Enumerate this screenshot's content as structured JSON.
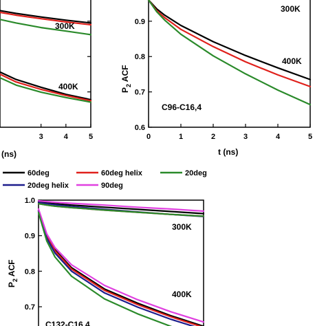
{
  "chart_data": [
    {
      "type": "line",
      "panel": "top-left",
      "xlabel": "(ns)",
      "x_ticks": [
        "3",
        "4",
        "5"
      ],
      "annotations": [
        "300K",
        "400K"
      ],
      "series": [
        {
          "name": "60deg",
          "x": [
            1.2,
            2,
            3,
            4,
            5
          ],
          "y": [
            0.93,
            0.922,
            0.912,
            0.903,
            0.895
          ]
        },
        {
          "name": "60deg helix",
          "x": [
            1.2,
            2,
            3,
            4,
            5
          ],
          "y": [
            0.925,
            0.917,
            0.907,
            0.898,
            0.89
          ]
        },
        {
          "name": "20deg",
          "x": [
            1.2,
            2,
            3,
            4,
            5
          ],
          "y": [
            0.905,
            0.895,
            0.882,
            0.872,
            0.862
          ]
        },
        {
          "name": "60deg",
          "x": [
            1.2,
            2,
            3,
            4,
            5
          ],
          "y": [
            0.756,
            0.735,
            0.713,
            0.693,
            0.678
          ]
        },
        {
          "name": "60deg helix",
          "x": [
            1.2,
            2,
            3,
            4,
            5
          ],
          "y": [
            0.75,
            0.728,
            0.707,
            0.69,
            0.675
          ]
        },
        {
          "name": "20deg",
          "x": [
            1.2,
            2,
            3,
            4,
            5
          ],
          "y": [
            0.74,
            0.719,
            0.699,
            0.684,
            0.671
          ]
        }
      ],
      "xlim": [
        1.2,
        5
      ],
      "ylim": [
        0.6,
        0.96
      ]
    },
    {
      "type": "line",
      "panel": "top-right",
      "xlabel": "t (ns)",
      "ylabel": "P2 ACF",
      "x_ticks": [
        "0",
        "1",
        "2",
        "3",
        "4",
        "5"
      ],
      "y_ticks": [
        "0.6",
        "0.7",
        "0.8",
        "0.9"
      ],
      "annotations": [
        "300K",
        "400K",
        "C96-C16,4"
      ],
      "series": [
        {
          "name": "60deg",
          "x": [
            0,
            0.25,
            0.5,
            1,
            2,
            3,
            4,
            5
          ],
          "y": [
            0.96,
            0.935,
            0.917,
            0.888,
            0.842,
            0.803,
            0.768,
            0.735
          ]
        },
        {
          "name": "60deg helix",
          "x": [
            0,
            0.25,
            0.5,
            1,
            2,
            3,
            4,
            5
          ],
          "y": [
            0.96,
            0.93,
            0.91,
            0.877,
            0.828,
            0.785,
            0.748,
            0.715
          ]
        },
        {
          "name": "20deg",
          "x": [
            0,
            0.25,
            0.5,
            1,
            2,
            3,
            4,
            5
          ],
          "y": [
            0.96,
            0.927,
            0.903,
            0.863,
            0.802,
            0.751,
            0.705,
            0.664
          ]
        }
      ],
      "xlim": [
        0,
        5
      ],
      "ylim": [
        0.6,
        0.96
      ]
    },
    {
      "type": "line",
      "panel": "bottom",
      "ylabel": "P2 ACF",
      "y_ticks": [
        "1.0",
        "0.9",
        "0.8",
        "0.7"
      ],
      "annotations": [
        "300K",
        "400K",
        "C132-C16,4"
      ],
      "series": [
        {
          "name": "60deg",
          "x": [
            0,
            0.25,
            0.5,
            1,
            2,
            3,
            4,
            5
          ],
          "y": [
            0.995,
            0.992,
            0.99,
            0.986,
            0.98,
            0.974,
            0.968,
            0.962
          ]
        },
        {
          "name": "20deg helix",
          "x": [
            0,
            0.25,
            0.5,
            1,
            2,
            3,
            4,
            5
          ],
          "y": [
            0.993,
            0.99,
            0.987,
            0.982,
            0.974,
            0.967,
            0.96,
            0.954
          ]
        },
        {
          "name": "90deg",
          "x": [
            0,
            0.25,
            0.5,
            1,
            2,
            3,
            4,
            5
          ],
          "y": [
            0.998,
            0.996,
            0.994,
            0.991,
            0.986,
            0.98,
            0.975,
            0.969
          ]
        },
        {
          "name": "60deg helix",
          "x": [
            0,
            0.25,
            0.5,
            1,
            2,
            3,
            4,
            5
          ],
          "y": [
            0.99,
            0.986,
            0.983,
            0.979,
            0.972,
            0.966,
            0.96,
            0.955
          ]
        },
        {
          "name": "20deg",
          "x": [
            0,
            0.25,
            0.5,
            1,
            2,
            3,
            4,
            5
          ],
          "y": [
            0.99,
            0.986,
            0.983,
            0.979,
            0.972,
            0.966,
            0.96,
            0.955
          ]
        },
        {
          "name": "60deg",
          "x": [
            0,
            0.25,
            0.5,
            1,
            2,
            3,
            4,
            5
          ],
          "y": [
            0.97,
            0.9,
            0.86,
            0.81,
            0.75,
            0.71,
            0.675,
            0.645
          ]
        },
        {
          "name": "60deg helix",
          "x": [
            0,
            0.25,
            0.5,
            1,
            2,
            3,
            4,
            5
          ],
          "y": [
            0.97,
            0.898,
            0.857,
            0.806,
            0.746,
            0.706,
            0.672,
            0.642
          ]
        },
        {
          "name": "20deg helix",
          "x": [
            0,
            0.25,
            0.5,
            1,
            2,
            3,
            4,
            5
          ],
          "y": [
            0.97,
            0.893,
            0.851,
            0.8,
            0.739,
            0.699,
            0.665,
            0.636
          ]
        },
        {
          "name": "90deg",
          "x": [
            0,
            0.25,
            0.5,
            1,
            2,
            3,
            4,
            5
          ],
          "y": [
            0.975,
            0.905,
            0.866,
            0.818,
            0.76,
            0.72,
            0.686,
            0.657
          ]
        },
        {
          "name": "20deg",
          "x": [
            0,
            0.25,
            0.5,
            1,
            2,
            3,
            4,
            5
          ],
          "y": [
            0.965,
            0.885,
            0.84,
            0.786,
            0.722,
            0.68,
            0.645,
            0.615
          ]
        }
      ],
      "xlim": [
        0,
        5
      ],
      "ylim": [
        0.65,
        1.0
      ]
    }
  ],
  "legend": [
    {
      "name": "60deg",
      "color": "#000000"
    },
    {
      "name": "60deg helix",
      "color": "#e0201b"
    },
    {
      "name": "20deg",
      "color": "#2a8a2a"
    },
    {
      "name": "20deg helix",
      "color": "#1c1c8c"
    },
    {
      "name": "90deg",
      "color": "#e040e0"
    }
  ],
  "colors": {
    "60deg": "#000000",
    "60deg helix": "#e0201b",
    "20deg": "#2a8a2a",
    "20deg helix": "#1c1c8c",
    "90deg": "#e040e0"
  }
}
